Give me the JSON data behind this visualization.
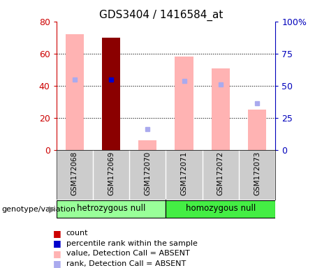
{
  "title": "GDS3404 / 1416584_at",
  "samples": [
    "GSM172068",
    "GSM172069",
    "GSM172070",
    "GSM172071",
    "GSM172072",
    "GSM172073"
  ],
  "pink_bar_values": [
    72,
    70,
    6,
    58,
    51,
    25
  ],
  "blue_sq_values": [
    44,
    44,
    13,
    43,
    41,
    29
  ],
  "dark_red_bar_index": 1,
  "dark_red_bar_value": 70,
  "ylim_left": [
    0,
    80
  ],
  "ylim_right": [
    0,
    100
  ],
  "yticks_left": [
    0,
    20,
    40,
    60,
    80
  ],
  "yticks_right": [
    0,
    25,
    50,
    75,
    100
  ],
  "ytick_labels_right": [
    "0",
    "25",
    "50",
    "75",
    "100%"
  ],
  "left_axis_color": "#cc0000",
  "right_axis_color": "#0000bb",
  "pink_bar_color": "#ffb3b3",
  "dark_red_color": "#8b0000",
  "blue_sq_absent_color": "#aaaaee",
  "blue_sq_present_color": "#0000cc",
  "group_left_color": "#99ff99",
  "group_right_color": "#44ee44",
  "genotype_label": "genotype/variation",
  "group_names": [
    "hetrozygous null",
    "homozygous null"
  ],
  "legend_items": [
    {
      "label": "count",
      "color": "#cc0000"
    },
    {
      "label": "percentile rank within the sample",
      "color": "#0000cc"
    },
    {
      "label": "value, Detection Call = ABSENT",
      "color": "#ffb3b3"
    },
    {
      "label": "rank, Detection Call = ABSENT",
      "color": "#aaaaee"
    }
  ],
  "absent_rank_indices": [
    0,
    2,
    3,
    4,
    5
  ],
  "present_rank_indices": [
    1
  ]
}
